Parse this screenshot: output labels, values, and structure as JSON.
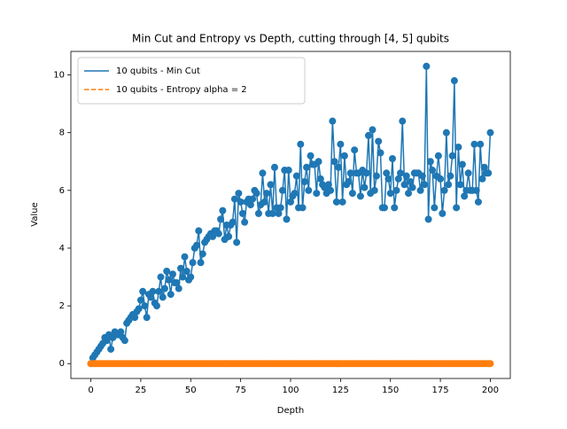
{
  "chart_data": {
    "type": "line",
    "title": "Min Cut and Entropy vs Depth, cutting through [4, 5] qubits",
    "x_label": "Depth",
    "y_label": "Value",
    "x": [
      0,
      1,
      2,
      3,
      4,
      5,
      6,
      7,
      8,
      9,
      10,
      11,
      12,
      13,
      14,
      15,
      16,
      17,
      18,
      19,
      20,
      21,
      22,
      23,
      24,
      25,
      26,
      27,
      28,
      29,
      30,
      31,
      32,
      33,
      34,
      35,
      36,
      37,
      38,
      39,
      40,
      41,
      42,
      43,
      44,
      45,
      46,
      47,
      48,
      49,
      50,
      51,
      52,
      53,
      54,
      55,
      56,
      57,
      58,
      59,
      60,
      61,
      62,
      63,
      64,
      65,
      66,
      67,
      68,
      69,
      70,
      71,
      72,
      73,
      74,
      75,
      76,
      77,
      78,
      79,
      80,
      81,
      82,
      83,
      84,
      85,
      86,
      87,
      88,
      89,
      90,
      91,
      92,
      93,
      94,
      95,
      96,
      97,
      98,
      99,
      100,
      101,
      102,
      103,
      104,
      105,
      106,
      107,
      108,
      109,
      110,
      111,
      112,
      113,
      114,
      115,
      116,
      117,
      118,
      119,
      120,
      121,
      122,
      123,
      124,
      125,
      126,
      127,
      128,
      129,
      130,
      131,
      132,
      133,
      134,
      135,
      136,
      137,
      138,
      139,
      140,
      141,
      142,
      143,
      144,
      145,
      146,
      147,
      148,
      149,
      150,
      151,
      152,
      153,
      154,
      155,
      156,
      157,
      158,
      159,
      160,
      161,
      162,
      163,
      164,
      165,
      166,
      167,
      168,
      169,
      170,
      171,
      172,
      173,
      174,
      175,
      176,
      177,
      178,
      179,
      180,
      181,
      182,
      183,
      184,
      185,
      186,
      187,
      188,
      189,
      190,
      191,
      192,
      193,
      194,
      195,
      196,
      197,
      198,
      199,
      200
    ],
    "series": [
      {
        "name": "10 qubits - Min Cut",
        "color": "#1f77b4",
        "linestyle": "solid",
        "marker": "o",
        "values": [
          0,
          0.2,
          0.3,
          0.4,
          0.5,
          0.6,
          0.7,
          0.9,
          0.8,
          1.0,
          0.5,
          0.9,
          1.1,
          1.0,
          1.0,
          1.1,
          0.9,
          0.8,
          1.4,
          1.5,
          1.6,
          1.7,
          1.6,
          1.8,
          1.9,
          2.2,
          2.5,
          2.0,
          1.6,
          2.4,
          2.3,
          2.5,
          2.1,
          2.0,
          2.5,
          3.0,
          2.3,
          2.6,
          3.2,
          2.9,
          2.4,
          3.1,
          2.8,
          2.8,
          2.6,
          3.3,
          3.0,
          3.7,
          3.2,
          2.9,
          3.0,
          3.5,
          4.0,
          4.1,
          4.6,
          3.5,
          3.8,
          4.2,
          4.3,
          4.4,
          4.5,
          4.4,
          4.6,
          4.6,
          4.5,
          5.0,
          5.3,
          4.3,
          4.8,
          4.4,
          4.8,
          4.9,
          5.7,
          4.2,
          5.9,
          5.6,
          5.2,
          4.9,
          5.6,
          5.7,
          5.5,
          5.7,
          6.0,
          5.9,
          5.2,
          5.5,
          6.6,
          5.6,
          5.9,
          5.2,
          6.2,
          5.2,
          6.8,
          5.4,
          5.2,
          5.4,
          6.0,
          6.7,
          5.0,
          6.7,
          5.6,
          5.8,
          5.9,
          6.5,
          5.4,
          7.6,
          5.4,
          6.3,
          6.8,
          6.0,
          7.2,
          6.9,
          6.9,
          5.9,
          7.0,
          6.4,
          6.2,
          6.1,
          5.9,
          6.2,
          6.0,
          8.4,
          7.0,
          5.6,
          6.8,
          7.6,
          5.6,
          7.2,
          6.2,
          6.3,
          6.6,
          5.9,
          7.4,
          6.6,
          6.6,
          5.8,
          6.7,
          6.1,
          6.6,
          7.9,
          5.9,
          8.1,
          6.0,
          6.5,
          7.7,
          7.3,
          5.4,
          5.4,
          6.6,
          6.4,
          5.9,
          7.1,
          5.4,
          6.0,
          6.4,
          6.6,
          8.4,
          6.2,
          6.5,
          5.9,
          6.3,
          6.1,
          6.6,
          6.6,
          6.6,
          6.0,
          6.5,
          6.2,
          10.3,
          5.0,
          7.0,
          6.7,
          5.4,
          6.5,
          7.2,
          6.4,
          5.2,
          6.0,
          8.0,
          6.2,
          6.5,
          7.2,
          9.8,
          5.4,
          7.5,
          6.2,
          6.9,
          5.8,
          6.0,
          6.6,
          6.0,
          6.0,
          7.6,
          6.0,
          5.6,
          7.6,
          6.4,
          6.8,
          6.6,
          6.6,
          8.0
        ]
      },
      {
        "name": "10 qubits - Entropy alpha = 2",
        "color": "#ff7f0e",
        "linestyle": "dashed",
        "marker": "o",
        "values": [
          0,
          0,
          0,
          0,
          0,
          0,
          0,
          0,
          0,
          0,
          0,
          0,
          0,
          0,
          0,
          0,
          0,
          0,
          0,
          0,
          0,
          0,
          0,
          0,
          0,
          0,
          0,
          0,
          0,
          0,
          0,
          0,
          0,
          0,
          0,
          0,
          0,
          0,
          0,
          0,
          0,
          0,
          0,
          0,
          0,
          0,
          0,
          0,
          0,
          0,
          0,
          0,
          0,
          0,
          0,
          0,
          0,
          0,
          0,
          0,
          0,
          0,
          0,
          0,
          0,
          0,
          0,
          0,
          0,
          0,
          0,
          0,
          0,
          0,
          0,
          0,
          0,
          0,
          0,
          0,
          0,
          0,
          0,
          0,
          0,
          0,
          0,
          0,
          0,
          0,
          0,
          0,
          0,
          0,
          0,
          0,
          0,
          0,
          0,
          0,
          0,
          0,
          0,
          0,
          0,
          0,
          0,
          0,
          0,
          0,
          0,
          0,
          0,
          0,
          0,
          0,
          0,
          0,
          0,
          0,
          0,
          0,
          0,
          0,
          0,
          0,
          0,
          0,
          0,
          0,
          0,
          0,
          0,
          0,
          0,
          0,
          0,
          0,
          0,
          0,
          0,
          0,
          0,
          0,
          0,
          0,
          0,
          0,
          0,
          0,
          0,
          0,
          0,
          0,
          0,
          0,
          0,
          0,
          0,
          0,
          0,
          0,
          0,
          0,
          0,
          0,
          0,
          0,
          0,
          0,
          0,
          0,
          0,
          0,
          0,
          0,
          0,
          0,
          0,
          0,
          0,
          0,
          0,
          0,
          0,
          0,
          0,
          0,
          0,
          0,
          0,
          0,
          0,
          0,
          0,
          0,
          0,
          0,
          0,
          0,
          0
        ]
      }
    ],
    "xlim": [
      -10,
      210
    ],
    "xticks": [
      0,
      25,
      50,
      75,
      100,
      125,
      150,
      175,
      200
    ],
    "ylim": [
      -0.515,
      10.815
    ],
    "yticks": [
      0,
      2,
      4,
      6,
      8,
      10
    ],
    "grid": false,
    "legend": "upper left"
  }
}
